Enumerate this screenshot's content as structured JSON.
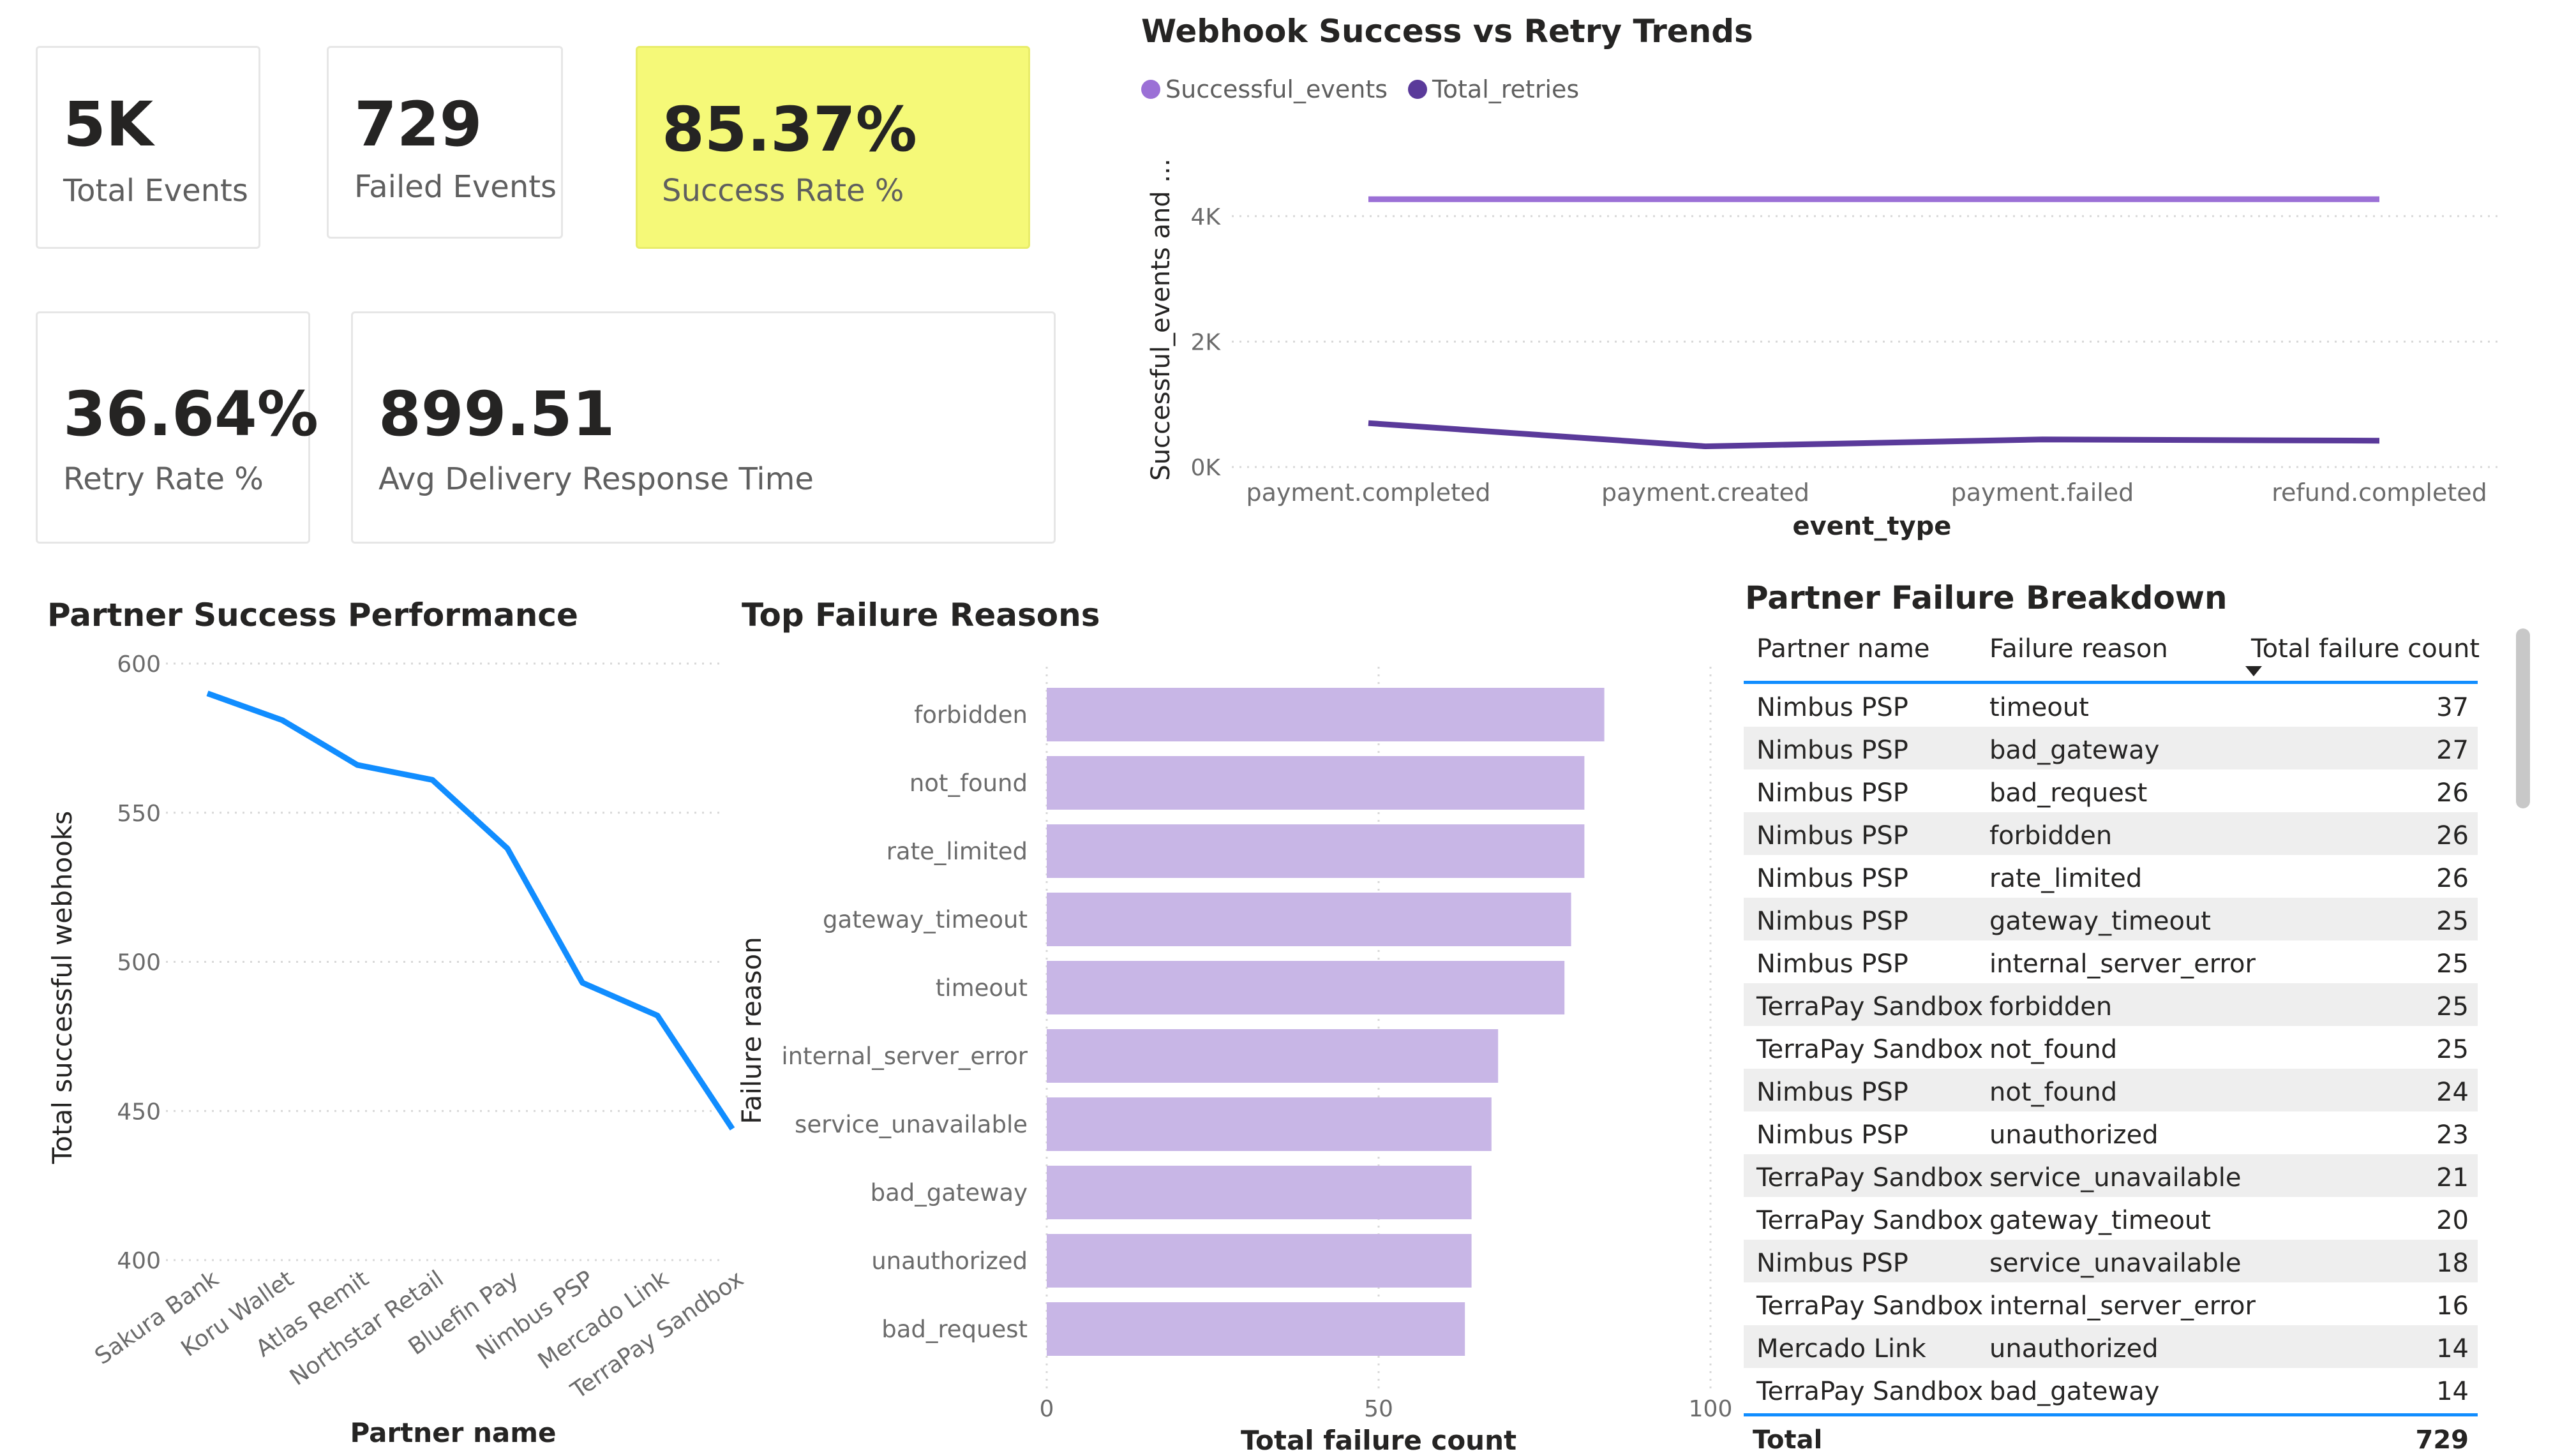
{
  "kpis": [
    {
      "value": "5K",
      "label": "Total Events"
    },
    {
      "value": "729",
      "label": "Failed Events"
    },
    {
      "value": "85.37%",
      "label": "Success Rate %"
    },
    {
      "value": "36.64%",
      "label": "Retry Rate %"
    },
    {
      "value": "899.51",
      "label": "Avg Delivery Response Time"
    }
  ],
  "colors": {
    "highlight": "#f5f978",
    "successful_events": "#9b70d6",
    "total_retries": "#5a3a9a",
    "partner_line": "#118dff",
    "bars": "#c8b6e6",
    "table_accent": "#118dff"
  },
  "chart_data": [
    {
      "type": "line",
      "title": "Webhook Success vs Retry Trends",
      "xlabel": "event_type",
      "ylabel": "Successful_events and ...",
      "categories": [
        "payment.completed",
        "payment.created",
        "payment.failed",
        "refund.completed"
      ],
      "series": [
        {
          "name": "Successful_events",
          "values": [
            4270,
            4270,
            4270,
            4270
          ]
        },
        {
          "name": "Total_retries",
          "values": [
            700,
            330,
            440,
            420
          ]
        }
      ],
      "yticks": [
        "0K",
        "2K",
        "4K"
      ],
      "ylim": [
        0,
        4700
      ],
      "legend": "top-left",
      "grid": true
    },
    {
      "type": "line",
      "title": "Partner Success Performance",
      "xlabel": "Partner name",
      "ylabel": "Total successful webhooks",
      "categories": [
        "Sakura Bank",
        "Koru Wallet",
        "Atlas Remit",
        "Northstar Retail",
        "Bluefin Pay",
        "Nimbus PSP",
        "Mercado Link",
        "TerraPay Sandbox"
      ],
      "values": [
        590,
        581,
        566,
        561,
        538,
        493,
        482,
        444
      ],
      "yticks": [
        "400",
        "450",
        "500",
        "550",
        "600"
      ],
      "ylim": [
        400,
        600
      ],
      "grid": true
    },
    {
      "type": "bar",
      "orientation": "horizontal",
      "title": "Top Failure Reasons",
      "xlabel": "Total failure count",
      "ylabel": "Failure reason",
      "categories": [
        "forbidden",
        "not_found",
        "rate_limited",
        "gateway_timeout",
        "timeout",
        "internal_server_error",
        "service_unavailable",
        "bad_gateway",
        "unauthorized",
        "bad_request"
      ],
      "values": [
        84,
        81,
        81,
        79,
        78,
        68,
        67,
        64,
        64,
        63
      ],
      "xticks": [
        "0",
        "50",
        "100"
      ],
      "xlim": [
        0,
        100
      ],
      "grid": true
    },
    {
      "type": "table",
      "title": "Partner Failure Breakdown",
      "columns": [
        "Partner name",
        "Failure reason",
        "Total failure count"
      ],
      "rows": [
        [
          "Nimbus PSP",
          "timeout",
          "37"
        ],
        [
          "Nimbus PSP",
          "bad_gateway",
          "27"
        ],
        [
          "Nimbus PSP",
          "bad_request",
          "26"
        ],
        [
          "Nimbus PSP",
          "forbidden",
          "26"
        ],
        [
          "Nimbus PSP",
          "rate_limited",
          "26"
        ],
        [
          "Nimbus PSP",
          "gateway_timeout",
          "25"
        ],
        [
          "Nimbus PSP",
          "internal_server_error",
          "25"
        ],
        [
          "TerraPay Sandbox",
          "forbidden",
          "25"
        ],
        [
          "TerraPay Sandbox",
          "not_found",
          "25"
        ],
        [
          "Nimbus PSP",
          "not_found",
          "24"
        ],
        [
          "Nimbus PSP",
          "unauthorized",
          "23"
        ],
        [
          "TerraPay Sandbox",
          "service_unavailable",
          "21"
        ],
        [
          "TerraPay Sandbox",
          "gateway_timeout",
          "20"
        ],
        [
          "Nimbus PSP",
          "service_unavailable",
          "18"
        ],
        [
          "TerraPay Sandbox",
          "internal_server_error",
          "16"
        ],
        [
          "Mercado Link",
          "unauthorized",
          "14"
        ],
        [
          "TerraPay Sandbox",
          "bad_gateway",
          "14"
        ]
      ],
      "total_label": "Total",
      "total_value": "729"
    }
  ]
}
